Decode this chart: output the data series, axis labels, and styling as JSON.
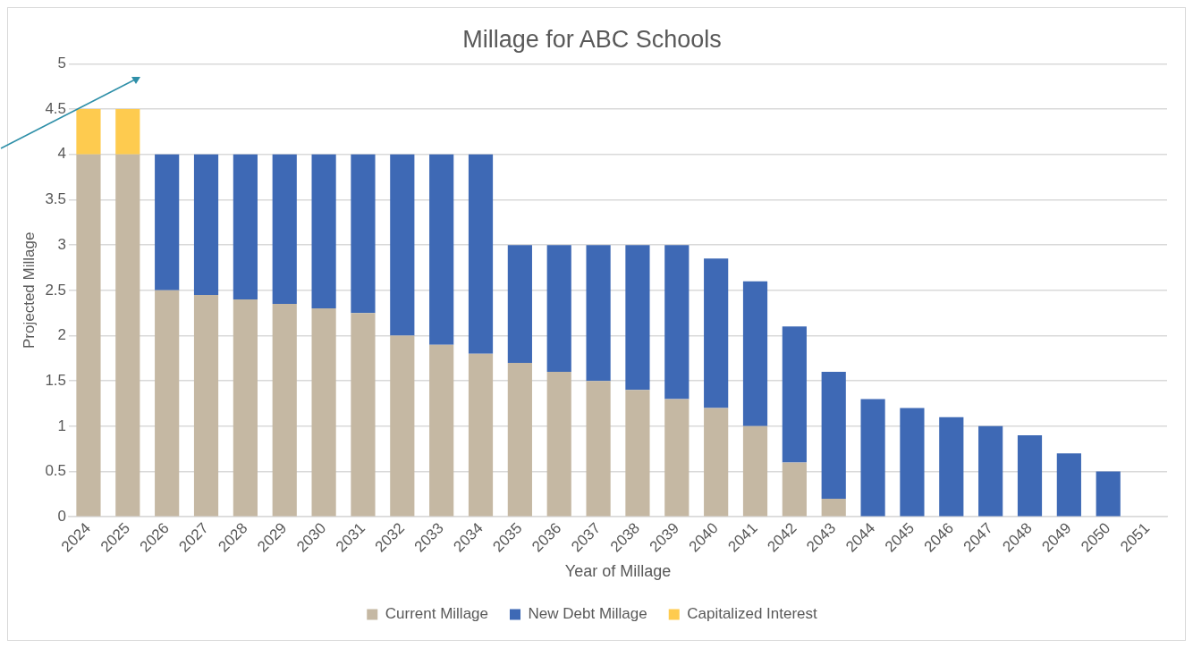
{
  "chart_data": {
    "type": "bar",
    "title": "Millage for ABC Schools",
    "xlabel": "Year of Millage",
    "ylabel": "Projected Millage",
    "categories": [
      "2024",
      "2025",
      "2026",
      "2027",
      "2028",
      "2029",
      "2030",
      "2031",
      "2032",
      "2033",
      "2034",
      "2035",
      "2036",
      "2037",
      "2038",
      "2039",
      "2040",
      "2041",
      "2042",
      "2043",
      "2044",
      "2045",
      "2046",
      "2047",
      "2048",
      "2049",
      "2050",
      "2051"
    ],
    "stacked": true,
    "series": [
      {
        "name": "Current Millage",
        "color": "#c5b8a3",
        "values": [
          4,
          4,
          2.5,
          2.45,
          2.4,
          2.35,
          2.3,
          2.25,
          2,
          1.9,
          1.8,
          1.7,
          1.6,
          1.5,
          1.4,
          1.3,
          1.2,
          1,
          0.6,
          0.2,
          0,
          0,
          0,
          0,
          0,
          0,
          0,
          0
        ]
      },
      {
        "name": "New Debt Millage",
        "color": "#3e69b5",
        "values": [
          0,
          0,
          1.5,
          1.55,
          1.6,
          1.65,
          1.7,
          1.75,
          2,
          2.1,
          2.2,
          1.3,
          1.4,
          1.5,
          1.6,
          1.7,
          1.65,
          1.6,
          1.5,
          1.4,
          1.3,
          1.2,
          1.1,
          1,
          0.9,
          0.7,
          0.5,
          0
        ]
      },
      {
        "name": "Capitalized Interest",
        "color": "#fecb4f",
        "values": [
          0.5,
          0.5,
          0,
          0,
          0,
          0,
          0,
          0,
          0,
          0,
          0,
          0,
          0,
          0,
          0,
          0,
          0,
          0,
          0,
          0,
          0,
          0,
          0,
          0,
          0,
          0,
          0,
          0
        ]
      }
    ],
    "ylim": [
      0,
      5
    ],
    "yticks": [
      0,
      0.5,
      1,
      1.5,
      2,
      2.5,
      3,
      3.5,
      4,
      4.5,
      5
    ],
    "grid": "y",
    "legend": "bottom"
  }
}
